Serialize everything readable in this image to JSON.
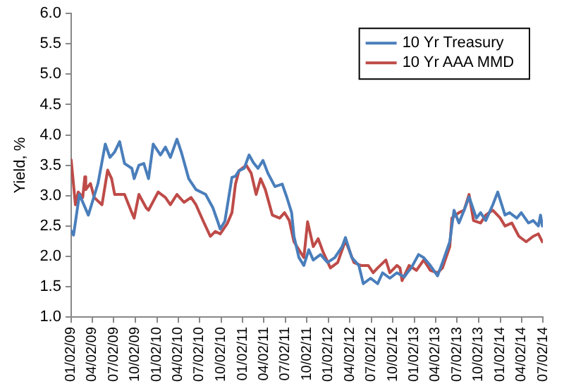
{
  "chart_data": {
    "type": "line",
    "ylabel": "Yield, %",
    "ylim": [
      1.0,
      6.0
    ],
    "yticks": [
      {
        "value": 1,
        "label": "1.0"
      },
      {
        "value": 1.5,
        "label": "1.5"
      },
      {
        "value": 2,
        "label": "2.0"
      },
      {
        "value": 2.5,
        "label": "2.5"
      },
      {
        "value": 3,
        "label": "3.0"
      },
      {
        "value": 3.5,
        "label": "3.5"
      },
      {
        "value": 4,
        "label": "4.0"
      },
      {
        "value": 4.5,
        "label": "4.5"
      },
      {
        "value": 5,
        "label": "5.0"
      },
      {
        "value": 5.5,
        "label": "5.5"
      },
      {
        "value": 6,
        "label": "6.0"
      }
    ],
    "xlim": [
      "2009-01-02",
      "2014-07-02"
    ],
    "xticks": [
      {
        "value": "2009-01-02",
        "label": "01/02/09"
      },
      {
        "value": "2009-04-02",
        "label": "04/02/09"
      },
      {
        "value": "2009-07-02",
        "label": "07/02/09"
      },
      {
        "value": "2009-10-02",
        "label": "10/02/09"
      },
      {
        "value": "2010-01-02",
        "label": "01/02/10"
      },
      {
        "value": "2010-04-02",
        "label": "04/02/10"
      },
      {
        "value": "2010-07-02",
        "label": "07/02/10"
      },
      {
        "value": "2010-10-02",
        "label": "10/02/10"
      },
      {
        "value": "2011-01-02",
        "label": "01/02/11"
      },
      {
        "value": "2011-04-02",
        "label": "04/02/11"
      },
      {
        "value": "2011-07-02",
        "label": "07/02/11"
      },
      {
        "value": "2011-10-02",
        "label": "10/02/11"
      },
      {
        "value": "2012-01-02",
        "label": "01/02/12"
      },
      {
        "value": "2012-04-02",
        "label": "04/02/12"
      },
      {
        "value": "2012-07-02",
        "label": "07/02/12"
      },
      {
        "value": "2012-10-02",
        "label": "10/02/12"
      },
      {
        "value": "2013-01-02",
        "label": "01/02/13"
      },
      {
        "value": "2013-04-02",
        "label": "04/02/13"
      },
      {
        "value": "2013-07-02",
        "label": "07/02/13"
      },
      {
        "value": "2013-10-02",
        "label": "10/02/13"
      },
      {
        "value": "2014-01-02",
        "label": "01/02/14"
      },
      {
        "value": "2014-04-02",
        "label": "04/02/14"
      },
      {
        "value": "2014-07-02",
        "label": "07/02/14"
      }
    ],
    "grid": false,
    "legend": "top right",
    "marker": "none",
    "line_style": "solid",
    "series": [
      {
        "name": "10 Yr Treasury",
        "color": "#4a7ebb",
        "x": [
          "2009-01-02",
          "2009-01-12",
          "2009-02-06",
          "2009-03-16",
          "2009-04-26",
          "2009-05-27",
          "2009-06-16",
          "2009-07-06",
          "2009-07-27",
          "2009-08-17",
          "2009-09-17",
          "2009-09-27",
          "2009-10-17",
          "2009-11-07",
          "2009-11-27",
          "2009-12-17",
          "2010-01-17",
          "2010-02-07",
          "2010-02-28",
          "2010-03-28",
          "2010-04-17",
          "2010-05-17",
          "2010-06-17",
          "2010-07-28",
          "2010-08-28",
          "2010-09-17",
          "2010-09-28",
          "2010-10-18",
          "2010-11-17",
          "2010-12-02",
          "2010-12-17",
          "2011-01-08",
          "2011-01-29",
          "2011-02-17",
          "2011-03-08",
          "2011-03-29",
          "2011-04-19",
          "2011-05-19",
          "2011-06-19",
          "2011-07-08",
          "2011-07-29",
          "2011-08-08",
          "2011-08-29",
          "2011-09-19",
          "2011-10-10",
          "2011-10-29",
          "2011-11-29",
          "2011-12-29",
          "2012-01-29",
          "2012-02-29",
          "2012-03-14",
          "2012-04-10",
          "2012-05-10",
          "2012-05-29",
          "2012-06-29",
          "2012-07-29",
          "2012-08-19",
          "2012-09-19",
          "2012-10-19",
          "2012-11-19",
          "2012-12-02",
          "2012-12-19",
          "2013-01-19",
          "2013-02-10",
          "2013-03-10",
          "2013-04-10",
          "2013-05-01",
          "2013-06-01",
          "2013-06-19",
          "2013-07-10",
          "2013-08-01",
          "2013-08-22",
          "2013-09-22",
          "2013-10-10",
          "2013-11-01",
          "2013-12-01",
          "2013-12-22",
          "2014-01-22",
          "2014-02-10",
          "2014-03-13",
          "2014-04-01",
          "2014-05-02",
          "2014-05-22",
          "2014-06-13",
          "2014-06-22",
          "2014-06-30"
        ],
        "values": [
          2.42,
          2.35,
          3.02,
          2.68,
          3.2,
          3.85,
          3.63,
          3.72,
          3.89,
          3.53,
          3.45,
          3.28,
          3.5,
          3.53,
          3.28,
          3.85,
          3.67,
          3.8,
          3.63,
          3.93,
          3.7,
          3.28,
          3.1,
          3.02,
          2.8,
          2.58,
          2.45,
          2.58,
          3.3,
          3.32,
          3.41,
          3.45,
          3.67,
          3.54,
          3.45,
          3.58,
          3.37,
          3.15,
          3.19,
          2.98,
          2.72,
          2.33,
          1.98,
          1.85,
          2.11,
          1.94,
          2.03,
          1.9,
          1.98,
          2.16,
          2.31,
          1.98,
          1.85,
          1.55,
          1.64,
          1.55,
          1.73,
          1.64,
          1.73,
          1.66,
          1.73,
          1.81,
          2.03,
          1.98,
          1.85,
          1.68,
          1.9,
          2.24,
          2.76,
          2.55,
          2.76,
          2.98,
          2.63,
          2.72,
          2.59,
          2.85,
          3.06,
          2.68,
          2.72,
          2.63,
          2.72,
          2.55,
          2.59,
          2.5,
          2.68,
          2.5
        ]
      },
      {
        "name": "10 Yr AAA MMD",
        "color": "#be4b48",
        "x": [
          "2009-01-02",
          "2009-01-20",
          "2009-02-01",
          "2009-02-20",
          "2009-03-01",
          "2009-03-05",
          "2009-03-25",
          "2009-04-10",
          "2009-05-13",
          "2009-06-06",
          "2009-06-23",
          "2009-07-06",
          "2009-08-17",
          "2009-09-17",
          "2009-09-27",
          "2009-10-17",
          "2009-11-17",
          "2009-11-27",
          "2010-01-07",
          "2010-02-07",
          "2010-02-28",
          "2010-03-28",
          "2010-04-27",
          "2010-05-27",
          "2010-06-17",
          "2010-07-18",
          "2010-08-17",
          "2010-09-07",
          "2010-09-28",
          "2010-10-28",
          "2010-11-17",
          "2010-12-02",
          "2010-12-17",
          "2011-01-17",
          "2011-02-07",
          "2011-02-28",
          "2011-03-19",
          "2011-04-08",
          "2011-05-08",
          "2011-06-08",
          "2011-06-29",
          "2011-07-19",
          "2011-08-08",
          "2011-08-29",
          "2011-09-19",
          "2011-10-05",
          "2011-10-29",
          "2011-11-19",
          "2011-12-10",
          "2012-01-10",
          "2012-02-10",
          "2012-03-14",
          "2012-04-19",
          "2012-05-19",
          "2012-06-19",
          "2012-07-10",
          "2012-07-29",
          "2012-09-02",
          "2012-09-19",
          "2012-10-19",
          "2012-11-01",
          "2012-11-10",
          "2012-12-10",
          "2013-01-10",
          "2013-02-10",
          "2013-03-10",
          "2013-04-10",
          "2013-05-01",
          "2013-06-01",
          "2013-06-10",
          "2013-07-10",
          "2013-08-01",
          "2013-08-22",
          "2013-09-10",
          "2013-10-10",
          "2013-11-01",
          "2013-12-01",
          "2014-01-02",
          "2014-01-22",
          "2014-02-20",
          "2014-03-22",
          "2014-04-22",
          "2014-05-22",
          "2014-06-13",
          "2014-06-30"
        ],
        "values": [
          3.59,
          2.85,
          3.06,
          2.97,
          3.31,
          3.1,
          3.2,
          2.97,
          2.85,
          3.42,
          3.28,
          3.02,
          3.02,
          2.72,
          2.63,
          3.02,
          2.8,
          2.76,
          3.06,
          2.97,
          2.85,
          3.02,
          2.89,
          2.97,
          2.85,
          2.58,
          2.33,
          2.41,
          2.37,
          2.54,
          2.72,
          3.19,
          3.41,
          3.5,
          3.37,
          3.02,
          3.28,
          3.1,
          2.68,
          2.63,
          2.72,
          2.59,
          2.24,
          2.11,
          1.98,
          2.57,
          2.16,
          2.29,
          2.07,
          1.81,
          1.9,
          2.26,
          1.9,
          1.85,
          1.85,
          1.73,
          1.81,
          1.94,
          1.73,
          1.85,
          1.81,
          1.6,
          1.85,
          1.77,
          1.94,
          1.77,
          1.73,
          1.81,
          2.16,
          2.63,
          2.72,
          2.76,
          3.02,
          2.59,
          2.55,
          2.68,
          2.76,
          2.63,
          2.5,
          2.55,
          2.33,
          2.24,
          2.33,
          2.37,
          2.24
        ]
      }
    ]
  }
}
